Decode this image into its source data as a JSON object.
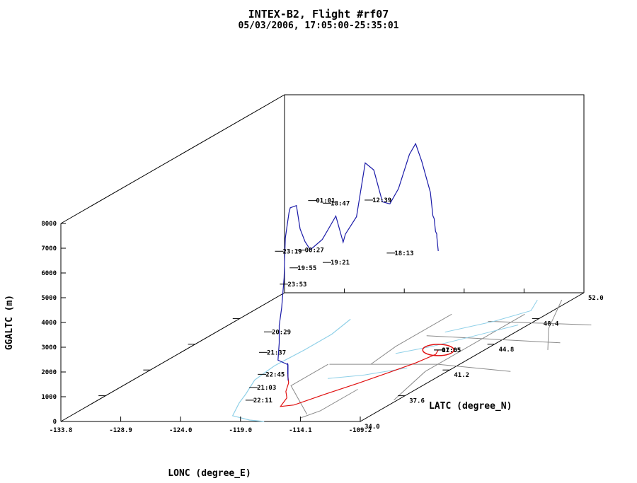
{
  "chart_data": {
    "type": "line",
    "title": "INTEX-B2, Flight #rf07",
    "subtitle": "05/03/2006, 17:05:00-25:35:01",
    "xlabel": "LONC (degree_E)",
    "ylabel": "LATC (degree_N)",
    "zlabel": "GGALTC (m)",
    "x_ticks": [
      "-133.8",
      "-128.9",
      "-124.0",
      "-119.0",
      "-114.1",
      "-109.2"
    ],
    "y_ticks": [
      "34.0",
      "37.6",
      "41.2",
      "44.8",
      "48.4",
      "52.0"
    ],
    "z_ticks": [
      "0",
      "1000",
      "2000",
      "3000",
      "4000",
      "5000",
      "6000",
      "7000",
      "8000"
    ],
    "xlim": [
      -133.8,
      -109.2
    ],
    "ylim": [
      34.0,
      52.0
    ],
    "zlim": [
      0,
      8000
    ],
    "colors": {
      "flight_track": "#1a1aa8",
      "ground_track": "#e01010",
      "state_borders": "#8a8a8a",
      "coastline": "#8fd0e8"
    },
    "series": [
      {
        "color": "#1a1aa8",
        "points": [
          [
            -121.9,
            40.6,
            0
          ],
          [
            -121.9,
            40.6,
            100
          ],
          [
            -121.9,
            40.6,
            450
          ],
          [
            -118.5,
            37.3,
            700
          ],
          [
            -118.3,
            37.1,
            1000
          ],
          [
            -118.3,
            37.1,
            1400
          ],
          [
            -118.0,
            36.0,
            1900
          ],
          [
            -117.9,
            36.0,
            2600
          ],
          [
            -117.9,
            36.0,
            3300
          ],
          [
            -117.8,
            36.1,
            4000
          ],
          [
            -117.6,
            36.1,
            5200
          ],
          [
            -117.5,
            36.1,
            6800
          ],
          [
            -117.3,
            36.2,
            7800
          ],
          [
            -117.2,
            36.2,
            8000
          ],
          [
            -117.0,
            36.5,
            8000
          ],
          [
            -116.9,
            36.7,
            7000
          ],
          [
            -116.8,
            37.0,
            6400
          ],
          [
            -116.7,
            37.3,
            6000
          ],
          [
            -116.7,
            37.5,
            6000
          ],
          [
            -116.4,
            38.0,
            6200
          ],
          [
            -116.2,
            38.4,
            6600
          ],
          [
            -115.8,
            38.5,
            7000
          ],
          [
            -115.0,
            38.3,
            6000
          ],
          [
            -114.2,
            37.7,
            6500
          ],
          [
            -114.0,
            38.4,
            7000
          ],
          [
            -113.9,
            39.0,
            9000
          ],
          [
            -113.6,
            39.4,
            8600
          ],
          [
            -113.3,
            39.8,
            7200
          ],
          [
            -113.1,
            40.2,
            7000
          ],
          [
            -112.8,
            40.6,
            7500
          ],
          [
            -112.2,
            40.9,
            8800
          ],
          [
            -111.8,
            41.0,
            9200
          ],
          [
            -111.6,
            41.3,
            8400
          ],
          [
            -111.4,
            41.8,
            7000
          ],
          [
            -111.4,
            42.0,
            6000
          ],
          [
            -111.6,
            42.3,
            5800
          ],
          [
            -111.8,
            42.6,
            5200
          ],
          [
            -112.0,
            42.9,
            5000
          ],
          [
            -112.3,
            43.2,
            4800
          ],
          [
            -113.0,
            44.0,
            4000
          ]
        ]
      }
    ],
    "time_labels": [
      {
        "text": "01:01",
        "lon": -116.4,
        "lat": 37.2,
        "alt": 8000
      },
      {
        "text": "18:47",
        "lon": -115.7,
        "lat": 37.7,
        "alt": 7750
      },
      {
        "text": "12:39",
        "lon": -113.6,
        "lat": 39.0,
        "alt": 7500
      },
      {
        "text": "23:19",
        "lon": -117.9,
        "lat": 36.0,
        "alt": 6300
      },
      {
        "text": "00:27",
        "lon": -116.6,
        "lat": 36.5,
        "alt": 6200
      },
      {
        "text": "19:55",
        "lon": -116.8,
        "lat": 36.1,
        "alt": 5600
      },
      {
        "text": "19:21",
        "lon": -115.2,
        "lat": 37.2,
        "alt": 5500
      },
      {
        "text": "18:13",
        "lon": -112.7,
        "lat": 39.9,
        "alt": 5100
      },
      {
        "text": "23:53",
        "lon": -117.4,
        "lat": 35.9,
        "alt": 5000
      },
      {
        "text": "20:29",
        "lon": -118.6,
        "lat": 35.8,
        "alt": 3100
      },
      {
        "text": "21:37",
        "lon": -118.9,
        "lat": 35.7,
        "alt": 2300
      },
      {
        "text": "22:45",
        "lon": -118.7,
        "lat": 35.4,
        "alt": 1500
      },
      {
        "text": "21:03",
        "lon": -119.3,
        "lat": 35.3,
        "alt": 1000
      },
      {
        "text": "22:11",
        "lon": -119.2,
        "lat": 34.9,
        "alt": 600
      },
      {
        "text": "17:05",
        "lon": -113.0,
        "lat": 44.0,
        "alt": 0
      },
      {
        "text": "01:05",
        "lon": -113.0,
        "lat": 44.0,
        "alt": 0
      }
    ],
    "grid": false
  }
}
